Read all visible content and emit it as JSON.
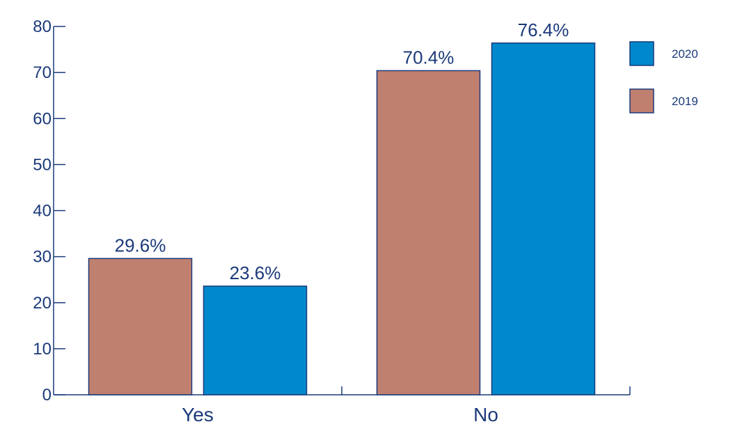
{
  "chart_data": {
    "type": "bar",
    "title": "",
    "xlabel": "",
    "ylabel": "",
    "categories": [
      "Yes",
      "No"
    ],
    "series": [
      {
        "name": "2019",
        "values": [
          29.6,
          70.4
        ],
        "labels": [
          "29.6%",
          "70.4%"
        ],
        "color": "#c08070"
      },
      {
        "name": "2020",
        "values": [
          23.6,
          76.4
        ],
        "labels": [
          "23.6%",
          "76.4%"
        ],
        "color": "#0088cc"
      }
    ],
    "ylim": [
      0,
      80
    ],
    "yticks": [
      0,
      10,
      20,
      30,
      40,
      50,
      60,
      70,
      80
    ],
    "grid": false,
    "legend": {
      "placement": "top-right",
      "entries": [
        {
          "label": "2020",
          "color": "#0088cc"
        },
        {
          "label": "2019",
          "color": "#c08070"
        }
      ]
    },
    "axis_color": "#1b3a7a",
    "bar_outline_color": "#1b3a7a"
  }
}
